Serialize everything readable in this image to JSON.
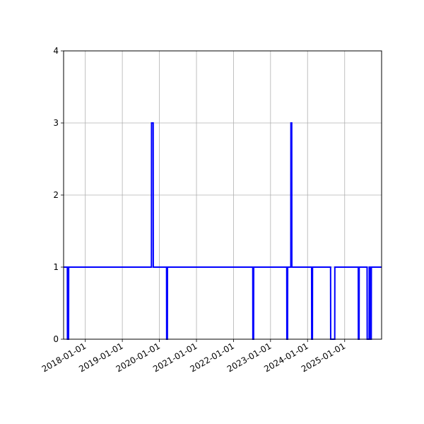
{
  "chart_data": {
    "type": "line",
    "step": true,
    "title": "",
    "xlabel": "",
    "ylabel": "",
    "xlim": [
      "2017-06-01",
      "2025-12-31"
    ],
    "ylim": [
      0,
      4
    ],
    "grid": true,
    "legend": "none",
    "color": "#0000ff",
    "x_ticks": [
      "2018-01-01",
      "2019-01-01",
      "2020-01-01",
      "2021-01-01",
      "2022-01-01",
      "2023-01-01",
      "2024-01-01",
      "2025-01-01"
    ],
    "y_ticks": [
      0,
      1,
      2,
      3,
      4
    ],
    "series": [
      {
        "x": [
          "2017-06-01",
          "2017-07-08",
          "2017-07-09",
          "2017-07-20",
          "2017-07-21",
          "2019-10-15",
          "2019-10-16",
          "2019-11-01",
          "2019-11-02",
          "2020-03-12",
          "2020-03-13",
          "2020-03-20",
          "2020-03-21",
          "2022-07-10",
          "2022-07-11",
          "2022-07-18",
          "2022-07-19",
          "2023-06-10",
          "2023-06-11",
          "2023-06-18",
          "2023-06-19",
          "2023-07-20",
          "2023-07-21",
          "2023-07-29",
          "2023-07-30",
          "2024-02-10",
          "2024-02-11",
          "2024-02-18",
          "2024-02-19",
          "2024-08-15",
          "2024-08-16",
          "2024-09-25",
          "2024-09-26",
          "2025-05-15",
          "2025-05-16",
          "2025-05-23",
          "2025-05-24",
          "2025-08-10",
          "2025-08-11",
          "2025-08-30",
          "2025-08-31",
          "2025-09-10",
          "2025-09-11",
          "2025-09-20",
          "2025-09-21",
          "2025-12-31"
        ],
        "values": [
          1,
          1,
          0,
          0,
          1,
          1,
          3,
          3,
          1,
          1,
          0,
          0,
          1,
          1,
          0,
          0,
          1,
          1,
          0,
          0,
          1,
          1,
          3,
          3,
          1,
          1,
          0,
          0,
          1,
          1,
          0,
          0,
          1,
          1,
          0,
          0,
          1,
          1,
          0,
          0,
          1,
          1,
          0,
          0,
          1,
          1
        ]
      }
    ]
  }
}
